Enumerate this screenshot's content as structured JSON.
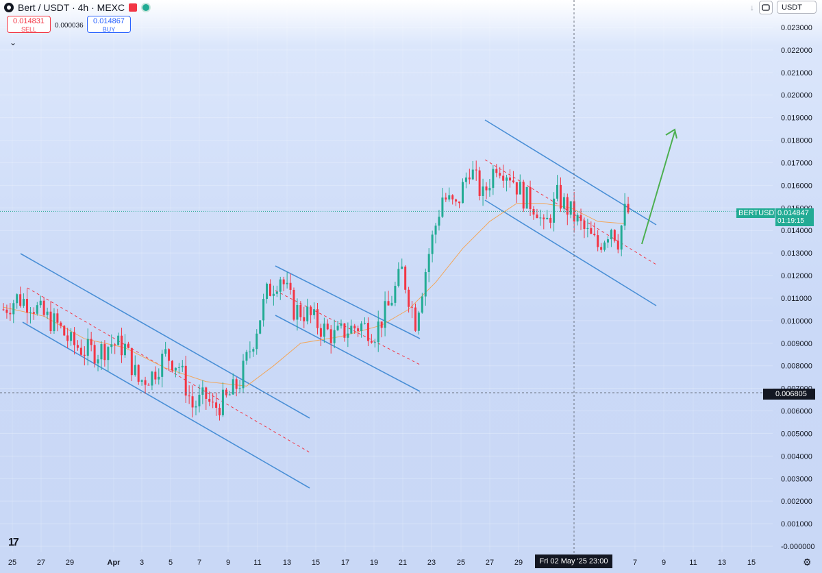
{
  "header": {
    "symbol": "Bert / USDT · 4h · MEXC",
    "sell_price": "0.014831",
    "sell_label": "SELL",
    "spread": "0.000036",
    "buy_price": "0.014867",
    "buy_label": "BUY",
    "currency": "USDT"
  },
  "price_tags": {
    "ticker": "BERTUSDT",
    "last_price": "0.014847",
    "countdown": "01:19:15",
    "crosshair_price": "0.006805",
    "crosshair_date": "Fri 02 May '25   23:00"
  },
  "colors": {
    "up": "#22ab94",
    "down": "#f23645",
    "channel": "#4a8fd6",
    "ma": "#f2a65a",
    "arrow": "#4caf50"
  },
  "chart_data": {
    "type": "candlestick",
    "symbol": "Bert / USDT",
    "timeframe": "4h",
    "exchange": "MEXC",
    "ylim": [
      0,
      0.0235
    ],
    "y_ticks": [
      "0.023000",
      "0.022000",
      "0.021000",
      "0.020000",
      "0.019000",
      "0.018000",
      "0.017000",
      "0.016000",
      "0.015000",
      "0.014000",
      "0.013000",
      "0.012000",
      "0.011000",
      "0.010000",
      "0.009000",
      "0.008000",
      "0.007000",
      "0.006000",
      "0.005000",
      "0.004000",
      "0.003000",
      "0.002000",
      "0.001000",
      "-0.000000"
    ],
    "x_ticks": [
      "25",
      "27",
      "29",
      "Apr",
      "3",
      "5",
      "7",
      "9",
      "11",
      "13",
      "15",
      "17",
      "19",
      "21",
      "23",
      "25",
      "27",
      "29",
      "7",
      "9",
      "11",
      "13",
      "15"
    ],
    "close_path": [
      [
        0,
        0.0105
      ],
      [
        2,
        0.011
      ],
      [
        4,
        0.0108
      ],
      [
        6,
        0.0102
      ],
      [
        8,
        0.0098
      ],
      [
        10,
        0.009
      ],
      [
        12,
        0.0087
      ],
      [
        14,
        0.0086
      ],
      [
        16,
        0.009
      ],
      [
        18,
        0.0088
      ],
      [
        20,
        0.0073
      ],
      [
        22,
        0.0076
      ],
      [
        24,
        0.0085
      ],
      [
        26,
        0.008
      ],
      [
        28,
        0.0062
      ],
      [
        30,
        0.0066
      ],
      [
        31,
        0.0061
      ],
      [
        33,
        0.0065
      ],
      [
        35,
        0.0073
      ],
      [
        37,
        0.0092
      ],
      [
        39,
        0.0112
      ],
      [
        41,
        0.012
      ],
      [
        43,
        0.0105
      ],
      [
        45,
        0.0103
      ],
      [
        47,
        0.0097
      ],
      [
        49,
        0.0093
      ],
      [
        51,
        0.0096
      ],
      [
        53,
        0.0098
      ],
      [
        55,
        0.0095
      ],
      [
        57,
        0.0106
      ],
      [
        59,
        0.0122
      ],
      [
        61,
        0.01
      ],
      [
        63,
        0.013
      ],
      [
        65,
        0.0155
      ],
      [
        67,
        0.015
      ],
      [
        69,
        0.0168
      ],
      [
        71,
        0.0155
      ],
      [
        73,
        0.017
      ],
      [
        75,
        0.0165
      ],
      [
        77,
        0.0155
      ],
      [
        79,
        0.015
      ],
      [
        80,
        0.014
      ],
      [
        82,
        0.0155
      ],
      [
        84,
        0.0148
      ],
      [
        86,
        0.014
      ],
      [
        88,
        0.0133
      ],
      [
        90,
        0.0142
      ],
      [
        91,
        0.0136
      ],
      [
        92,
        0.0148
      ]
    ],
    "ma_path": [
      [
        0,
        0.0106
      ],
      [
        6,
        0.0102
      ],
      [
        12,
        0.0092
      ],
      [
        18,
        0.0088
      ],
      [
        24,
        0.0079
      ],
      [
        30,
        0.0073
      ],
      [
        36,
        0.0071
      ],
      [
        40,
        0.008
      ],
      [
        44,
        0.009
      ],
      [
        50,
        0.0093
      ],
      [
        56,
        0.0098
      ],
      [
        60,
        0.0105
      ],
      [
        64,
        0.0117
      ],
      [
        68,
        0.0132
      ],
      [
        72,
        0.0144
      ],
      [
        76,
        0.0152
      ],
      [
        80,
        0.0152
      ],
      [
        84,
        0.015
      ],
      [
        88,
        0.0144
      ],
      [
        92,
        0.0143
      ]
    ],
    "last_price": 0.014847,
    "crosshair_price": 0.006805
  }
}
